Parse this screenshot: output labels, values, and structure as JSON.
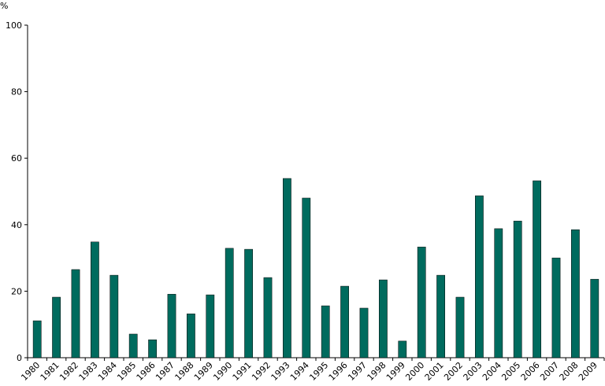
{
  "chart_data": {
    "type": "bar",
    "y_label": "%",
    "categories": [
      "1980",
      "1981",
      "1982",
      "1983",
      "1984",
      "1985",
      "1986",
      "1987",
      "1988",
      "1989",
      "1990",
      "1991",
      "1992",
      "1993",
      "1994",
      "1995",
      "1996",
      "1997",
      "1998",
      "1999",
      "2000",
      "2001",
      "2002",
      "2003",
      "2004",
      "2005",
      "2006",
      "2007",
      "2008",
      "2009"
    ],
    "values": [
      11.1,
      18.2,
      26.5,
      34.8,
      24.8,
      7.1,
      5.4,
      19.1,
      13.2,
      18.9,
      32.9,
      32.6,
      24.1,
      53.9,
      48.0,
      15.6,
      21.5,
      14.9,
      23.4,
      5.0,
      33.3,
      24.8,
      18.2,
      48.7,
      38.8,
      41.1,
      53.2,
      30.0,
      38.5,
      23.6
    ],
    "color": "#006b5e",
    "ylim": [
      0,
      100
    ],
    "yticks": [
      0,
      20,
      40,
      60,
      80,
      100
    ],
    "grid": false
  }
}
